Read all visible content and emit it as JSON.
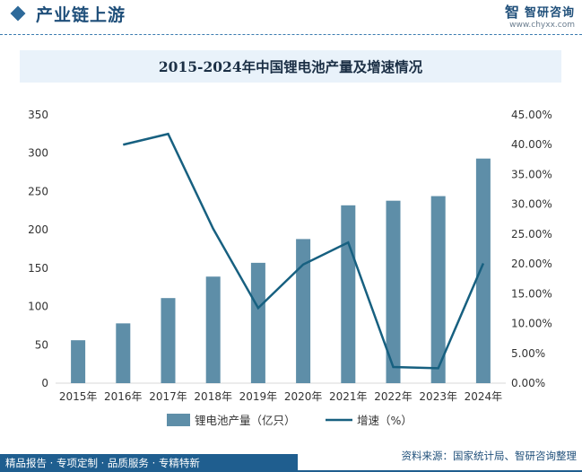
{
  "header": {
    "title": "产业链上游",
    "brand_logo": "智",
    "brand_name": "智研咨询",
    "brand_url": "www.chyxx.com"
  },
  "chart_data": {
    "type": "bar",
    "title": "2015-2024年中国锂电池产量及增速情况",
    "categories": [
      "2015年",
      "2016年",
      "2017年",
      "2018年",
      "2019年",
      "2020年",
      "2021年",
      "2022年",
      "2023年",
      "2024年"
    ],
    "series": [
      {
        "name": "锂电池产量（亿只）",
        "type": "bar",
        "axis": "left",
        "color": "#5e8ea8",
        "values": [
          56,
          78,
          111,
          139,
          157,
          188,
          232,
          238,
          244,
          293
        ]
      },
      {
        "name": "增速（%）",
        "type": "line",
        "axis": "right",
        "color": "#176080",
        "values": [
          null,
          40.0,
          41.8,
          25.9,
          12.6,
          19.9,
          23.6,
          2.7,
          2.5,
          20.1
        ]
      }
    ],
    "y_left": {
      "min": 0,
      "max": 350,
      "ticks": [
        0,
        50,
        100,
        150,
        200,
        250,
        300,
        350
      ]
    },
    "y_right": {
      "min": 0,
      "max": 45,
      "ticks": [
        "0.00%",
        "5.00%",
        "10.00%",
        "15.00%",
        "20.00%",
        "25.00%",
        "30.00%",
        "35.00%",
        "40.00%",
        "45.00%"
      ]
    },
    "legend_position": "bottom",
    "grid": false
  },
  "footer": {
    "services": "精品报告 · 专项定制 · 品质服务 · 专精特新",
    "source": "资料来源：国家统计局、智研咨询整理"
  }
}
